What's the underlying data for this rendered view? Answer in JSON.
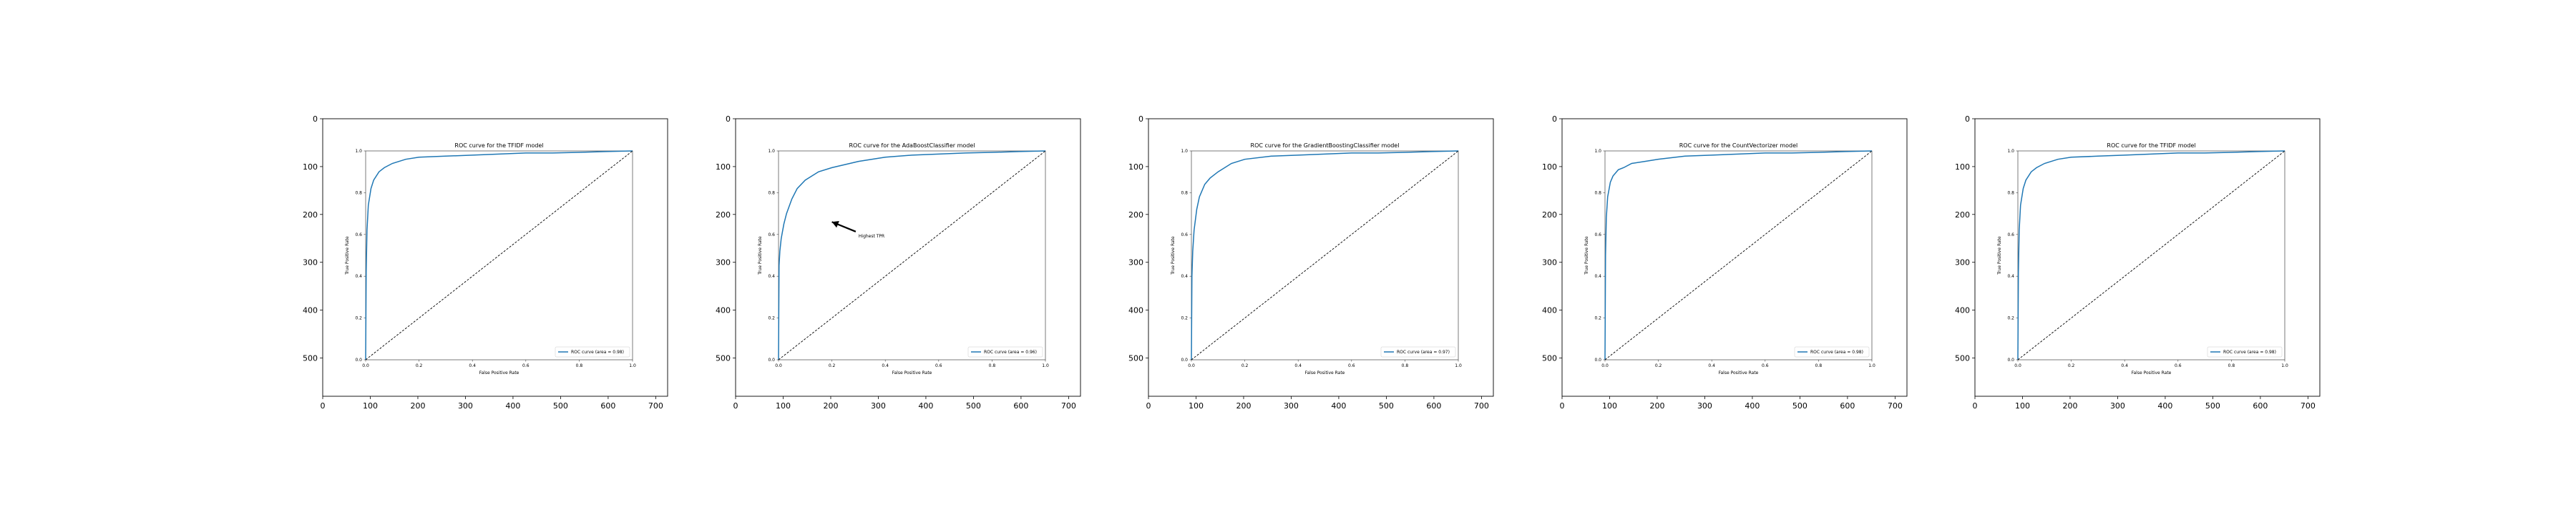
{
  "outer_axes": {
    "x_ticks": [
      "0",
      "100",
      "200",
      "300",
      "400",
      "500",
      "600",
      "700"
    ],
    "y_ticks": [
      "0",
      "100",
      "200",
      "300",
      "400",
      "500"
    ],
    "x_range": [
      0,
      725
    ],
    "y_range": [
      580,
      0
    ]
  },
  "chart_data": [
    {
      "type": "line",
      "title": "ROC curve for the TFIDF model",
      "xlabel": "False Positive Rate",
      "ylabel": "True Positive Rate",
      "xlim": [
        0.0,
        1.0
      ],
      "ylim": [
        0.0,
        1.0
      ],
      "x_ticks": [
        "0.0",
        "0.2",
        "0.4",
        "0.6",
        "0.8",
        "1.0"
      ],
      "y_ticks": [
        "0.0",
        "0.2",
        "0.4",
        "0.6",
        "0.8",
        "1.0"
      ],
      "legend": "lower right",
      "legend_label": "ROC curve (area = 0.98)",
      "annotation": null,
      "series": [
        {
          "name": "ROC curve (area = 0.98)",
          "color": "#1f77b4",
          "x": [
            0.0,
            0.002,
            0.005,
            0.01,
            0.02,
            0.03,
            0.05,
            0.07,
            0.1,
            0.15,
            0.2,
            0.3,
            0.4,
            0.5,
            0.6,
            0.7,
            0.8,
            0.9,
            1.0
          ],
          "y": [
            0.0,
            0.42,
            0.62,
            0.74,
            0.82,
            0.86,
            0.9,
            0.92,
            0.94,
            0.96,
            0.97,
            0.975,
            0.98,
            0.985,
            0.99,
            0.99,
            0.993,
            0.997,
            1.0
          ]
        },
        {
          "name": "",
          "color": "#000000",
          "dashed": true,
          "x": [
            0,
            1
          ],
          "y": [
            0,
            1
          ]
        }
      ]
    },
    {
      "type": "line",
      "title": "ROC curve for the AdaBoostClassifier model",
      "xlabel": "False Positive Rate",
      "ylabel": "True Positive Rate",
      "xlim": [
        0.0,
        1.0
      ],
      "ylim": [
        0.0,
        1.0
      ],
      "x_ticks": [
        "0.0",
        "0.2",
        "0.4",
        "0.6",
        "0.8",
        "1.0"
      ],
      "y_ticks": [
        "0.0",
        "0.2",
        "0.4",
        "0.6",
        "0.8",
        "1.0"
      ],
      "legend": "lower right",
      "legend_label": "ROC curve (area = 0.96)",
      "annotation": {
        "text": "Highest TPR",
        "x": 0.3,
        "y": 0.6,
        "arrow_x": 0.2,
        "arrow_y": 0.66
      },
      "series": [
        {
          "name": "ROC curve (area = 0.96)",
          "color": "#1f77b4",
          "x": [
            0.0,
            0.002,
            0.005,
            0.01,
            0.02,
            0.03,
            0.05,
            0.07,
            0.1,
            0.15,
            0.2,
            0.3,
            0.4,
            0.5,
            0.6,
            0.7,
            0.8,
            0.9,
            1.0
          ],
          "y": [
            0.0,
            0.45,
            0.52,
            0.58,
            0.65,
            0.7,
            0.77,
            0.82,
            0.86,
            0.9,
            0.92,
            0.95,
            0.97,
            0.98,
            0.985,
            0.99,
            0.993,
            0.997,
            1.0
          ]
        },
        {
          "name": "",
          "color": "#000000",
          "dashed": true,
          "x": [
            0,
            1
          ],
          "y": [
            0,
            1
          ]
        }
      ]
    },
    {
      "type": "line",
      "title": "ROC curve for the GradientBoostingClassifier model",
      "xlabel": "False Positive Rate",
      "ylabel": "True Positive Rate",
      "xlim": [
        0.0,
        1.0
      ],
      "ylim": [
        0.0,
        1.0
      ],
      "x_ticks": [
        "0.0",
        "0.2",
        "0.4",
        "0.6",
        "0.8",
        "1.0"
      ],
      "y_ticks": [
        "0.0",
        "0.2",
        "0.4",
        "0.6",
        "0.8",
        "1.0"
      ],
      "legend": "lower right",
      "legend_label": "ROC curve (area = 0.97)",
      "annotation": null,
      "series": [
        {
          "name": "ROC curve (area = 0.97)",
          "color": "#1f77b4",
          "x": [
            0.0,
            0.002,
            0.005,
            0.01,
            0.02,
            0.03,
            0.05,
            0.07,
            0.1,
            0.15,
            0.2,
            0.3,
            0.4,
            0.5,
            0.6,
            0.7,
            0.8,
            0.9,
            1.0
          ],
          "y": [
            0.0,
            0.4,
            0.52,
            0.62,
            0.72,
            0.78,
            0.84,
            0.87,
            0.9,
            0.94,
            0.96,
            0.975,
            0.98,
            0.985,
            0.99,
            0.99,
            0.993,
            0.997,
            1.0
          ]
        },
        {
          "name": "",
          "color": "#000000",
          "dashed": true,
          "x": [
            0,
            1
          ],
          "y": [
            0,
            1
          ]
        }
      ]
    },
    {
      "type": "line",
      "title": "ROC curve for the CountVectorizer model",
      "xlabel": "False Positive Rate",
      "ylabel": "True Positive Rate",
      "xlim": [
        0.0,
        1.0
      ],
      "ylim": [
        0.0,
        1.0
      ],
      "x_ticks": [
        "0.0",
        "0.2",
        "0.4",
        "0.6",
        "0.8",
        "1.0"
      ],
      "y_ticks": [
        "0.0",
        "0.2",
        "0.4",
        "0.6",
        "0.8",
        "1.0"
      ],
      "legend": "lower right",
      "legend_label": "ROC curve (area = 0.98)",
      "annotation": null,
      "series": [
        {
          "name": "ROC curve (area = 0.98)",
          "color": "#1f77b4",
          "x": [
            0.0,
            0.002,
            0.005,
            0.01,
            0.02,
            0.03,
            0.05,
            0.07,
            0.1,
            0.15,
            0.2,
            0.3,
            0.4,
            0.5,
            0.6,
            0.7,
            0.8,
            0.9,
            1.0
          ],
          "y": [
            0.0,
            0.5,
            0.68,
            0.78,
            0.85,
            0.88,
            0.91,
            0.92,
            0.94,
            0.95,
            0.96,
            0.975,
            0.98,
            0.985,
            0.99,
            0.99,
            0.993,
            0.997,
            1.0
          ]
        },
        {
          "name": "",
          "color": "#000000",
          "dashed": true,
          "x": [
            0,
            1
          ],
          "y": [
            0,
            1
          ]
        }
      ]
    },
    {
      "type": "line",
      "title": "ROC curve for the TFIDF model",
      "xlabel": "False Positive Rate",
      "ylabel": "True Positive Rate",
      "xlim": [
        0.0,
        1.0
      ],
      "ylim": [
        0.0,
        1.0
      ],
      "x_ticks": [
        "0.0",
        "0.2",
        "0.4",
        "0.6",
        "0.8",
        "1.0"
      ],
      "y_ticks": [
        "0.0",
        "0.2",
        "0.4",
        "0.6",
        "0.8",
        "1.0"
      ],
      "legend": "lower right",
      "legend_label": "ROC curve (area = 0.98)",
      "annotation": null,
      "series": [
        {
          "name": "ROC curve (area = 0.98)",
          "color": "#1f77b4",
          "x": [
            0.0,
            0.002,
            0.005,
            0.01,
            0.02,
            0.03,
            0.05,
            0.07,
            0.1,
            0.15,
            0.2,
            0.3,
            0.4,
            0.5,
            0.6,
            0.7,
            0.8,
            0.9,
            1.0
          ],
          "y": [
            0.0,
            0.42,
            0.62,
            0.74,
            0.82,
            0.86,
            0.9,
            0.92,
            0.94,
            0.96,
            0.97,
            0.975,
            0.98,
            0.985,
            0.99,
            0.99,
            0.993,
            0.997,
            1.0
          ]
        },
        {
          "name": "",
          "color": "#000000",
          "dashed": true,
          "x": [
            0,
            1
          ],
          "y": [
            0,
            1
          ]
        }
      ]
    }
  ]
}
